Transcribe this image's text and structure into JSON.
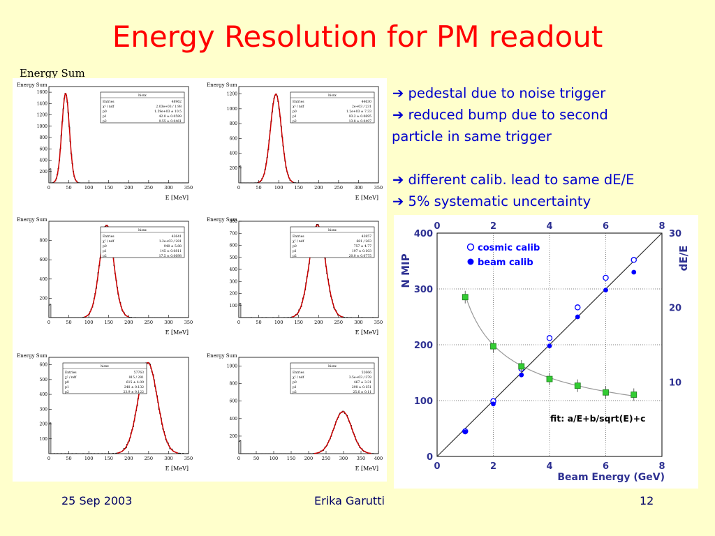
{
  "slide": {
    "title": "Energy Resolution for PM readout",
    "panel_label": "Energy Sum",
    "bullets": [
      {
        "arrow": "➔",
        "text": "pedestal due to noise trigger"
      },
      {
        "arrow": "➔",
        "text": "reduced bump due to second"
      },
      {
        "arrow": "",
        "text": "particle in same trigger"
      },
      {
        "arrow": "",
        "text": ""
      },
      {
        "arrow": "➔",
        "text": "different calib. lead to same dE/E"
      },
      {
        "arrow": "➔",
        "text": "5% systematic uncertainty"
      }
    ],
    "footer": {
      "date": "25 Sep 2003",
      "author": "Erika Garutti",
      "page": "12"
    },
    "colors": {
      "title": "#ff0000",
      "bullets": "#0000cc",
      "background": "#ffffcc",
      "fit_line": "#cc0000"
    }
  },
  "chart_data": [
    {
      "type": "histogram",
      "title": "Energy Sum",
      "xlabel": "E [MeV]",
      "xlim": [
        0,
        350
      ],
      "ylim": [
        0,
        1700
      ],
      "xticks": [
        0,
        50,
        100,
        150,
        200,
        250,
        300,
        350
      ],
      "yticks": [
        200,
        400,
        600,
        800,
        1000,
        1200,
        1400,
        1600
      ],
      "peak_mean": 42,
      "peak_sigma": 9.5,
      "peak_height": 1580,
      "pedestal_height": 240,
      "stats": {
        "header": "hisxx",
        "rows": [
          [
            "Entries",
            "48962"
          ],
          [
            "χ² / ndf",
            "2.03e+03 / 1.98"
          ],
          [
            "p0",
            "1.59e+03 ± 10.5"
          ],
          [
            "p1",
            "42.0 ± 0.0589"
          ],
          [
            "p2",
            "9.55 ± 0.0461"
          ]
        ]
      }
    },
    {
      "type": "histogram",
      "title": "Energy Sum",
      "xlabel": "E [MeV]",
      "xlim": [
        0,
        350
      ],
      "ylim": [
        0,
        1300
      ],
      "xticks": [
        0,
        50,
        100,
        150,
        200,
        250,
        300,
        350
      ],
      "yticks": [
        200,
        400,
        600,
        800,
        1000,
        1200
      ],
      "peak_mean": 93,
      "peak_sigma": 13.8,
      "peak_height": 1200,
      "pedestal_height": 220,
      "stats": {
        "header": "hisxx",
        "rows": [
          [
            "Entries",
            "44630"
          ],
          [
            "χ² / ndf",
            "2e+03 / 231"
          ],
          [
            "p0",
            "1.2e+03 ± 7.33"
          ],
          [
            "p1",
            "93.2 ± 0.0695"
          ],
          [
            "p2",
            "13.8 ± 0.0497"
          ]
        ]
      }
    },
    {
      "type": "histogram",
      "title": "Energy Sum",
      "xlabel": "E [MeV]",
      "xlim": [
        0,
        350
      ],
      "ylim": [
        0,
        1000
      ],
      "xticks": [
        0,
        50,
        100,
        150,
        200,
        250,
        300,
        350
      ],
      "yticks": [
        200,
        400,
        600,
        800
      ],
      "peak_mean": 145,
      "peak_sigma": 17.5,
      "peak_height": 960,
      "pedestal_height": 130,
      "stats": {
        "header": "hisxx",
        "rows": [
          [
            "Entries",
            "43641"
          ],
          [
            "χ² / ndf",
            "1.2e+03 / 281"
          ],
          [
            "p0",
            "940 ± 5.88"
          ],
          [
            "p1",
            "145 ± 0.0811"
          ],
          [
            "p2",
            "17.5 ± 0.0698"
          ]
        ]
      }
    },
    {
      "type": "histogram",
      "title": "Energy Sum",
      "xlabel": "E [MeV]",
      "xlim": [
        0,
        350
      ],
      "ylim": [
        0,
        800
      ],
      "xticks": [
        0,
        50,
        100,
        150,
        200,
        250,
        300,
        350
      ],
      "yticks": [
        100,
        200,
        300,
        400,
        500,
        600,
        700,
        800
      ],
      "peak_mean": 197,
      "peak_sigma": 20,
      "peak_height": 770,
      "pedestal_height": 110,
      "stats": {
        "header": "hisxx",
        "rows": [
          [
            "Entries",
            "43857"
          ],
          [
            "χ² / ndf",
            "681 / 263"
          ],
          [
            "p0",
            "757 ± 4.77"
          ],
          [
            "p1",
            "197 ± 0.103"
          ],
          [
            "p2",
            "20.0 ± 0.0775"
          ]
        ]
      }
    },
    {
      "type": "histogram",
      "title": "Energy Sum",
      "xlabel": "E [MeV]",
      "xlim": [
        0,
        350
      ],
      "ylim": [
        0,
        650
      ],
      "xticks": [
        0,
        50,
        100,
        150,
        200,
        250,
        300,
        350
      ],
      "yticks": [
        100,
        200,
        300,
        400,
        500,
        600
      ],
      "peak_mean": 248,
      "peak_sigma": 23.9,
      "peak_height": 615,
      "pedestal_height": 200,
      "stats": {
        "header": "hisxx",
        "rows": [
          [
            "Entries",
            "57763"
          ],
          [
            "χ² / ndf",
            "815 / 281"
          ],
          [
            "p0",
            "615 ± 4.09"
          ],
          [
            "p1",
            "248 ± 0.132"
          ],
          [
            "p2",
            "23.9 ± 0.122"
          ]
        ]
      }
    },
    {
      "type": "histogram",
      "title": "Energy Sum",
      "xlabel": "E [MeV]",
      "xlim": [
        0,
        400
      ],
      "ylim": [
        0,
        1100
      ],
      "xticks": [
        0,
        50,
        100,
        150,
        200,
        250,
        300,
        350,
        400
      ],
      "yticks": [
        200,
        400,
        600,
        800,
        1000
      ],
      "peak_mean": 298,
      "peak_sigma": 25.6,
      "peak_height": 480,
      "pedestal_height": 140,
      "stats": {
        "header": "hisxx",
        "rows": [
          [
            "Entries",
            "52666"
          ],
          [
            "χ² / ndf",
            "3.5e+03 / 378"
          ],
          [
            "p0",
            "467 ± 3.31"
          ],
          [
            "p1",
            "298 ± 0.151"
          ],
          [
            "p2",
            "25.6 ± 0.11"
          ]
        ]
      }
    },
    {
      "type": "scatter",
      "xlabel": "Beam Energy (GeV)",
      "ylabel": "N MIP",
      "y2label": "dE/E",
      "xlim": [
        0,
        8
      ],
      "ylim": [
        0,
        400
      ],
      "y2lim": [
        0,
        30
      ],
      "xticks": [
        0,
        2,
        4,
        6,
        8
      ],
      "yticks": [
        0,
        100,
        200,
        300,
        400
      ],
      "y2ticks": [
        10,
        20,
        30
      ],
      "annotation": "fit: a/E+b/sqrt(E)+c",
      "legend": [
        "cosmic calib",
        "beam calib"
      ],
      "series": [
        {
          "name": "cosmic calib",
          "marker": "open-circle",
          "color": "#0000ff",
          "x": [
            1,
            2,
            3,
            4,
            5,
            6,
            7
          ],
          "y": [
            45,
            99,
            157,
            212,
            267,
            320,
            352
          ]
        },
        {
          "name": "beam calib",
          "marker": "filled-circle",
          "color": "#0000ff",
          "x": [
            1,
            2,
            3,
            4,
            5,
            6,
            7
          ],
          "y": [
            44,
            94,
            146,
            198,
            250,
            298,
            330
          ]
        },
        {
          "name": "resolution",
          "axis": "y2",
          "marker": "square",
          "color": "#33cc33",
          "x": [
            1,
            2,
            3,
            4,
            5,
            6,
            7
          ],
          "y": [
            21.4,
            14.8,
            12.1,
            10.4,
            9.5,
            8.6,
            8.3
          ]
        }
      ]
    }
  ]
}
